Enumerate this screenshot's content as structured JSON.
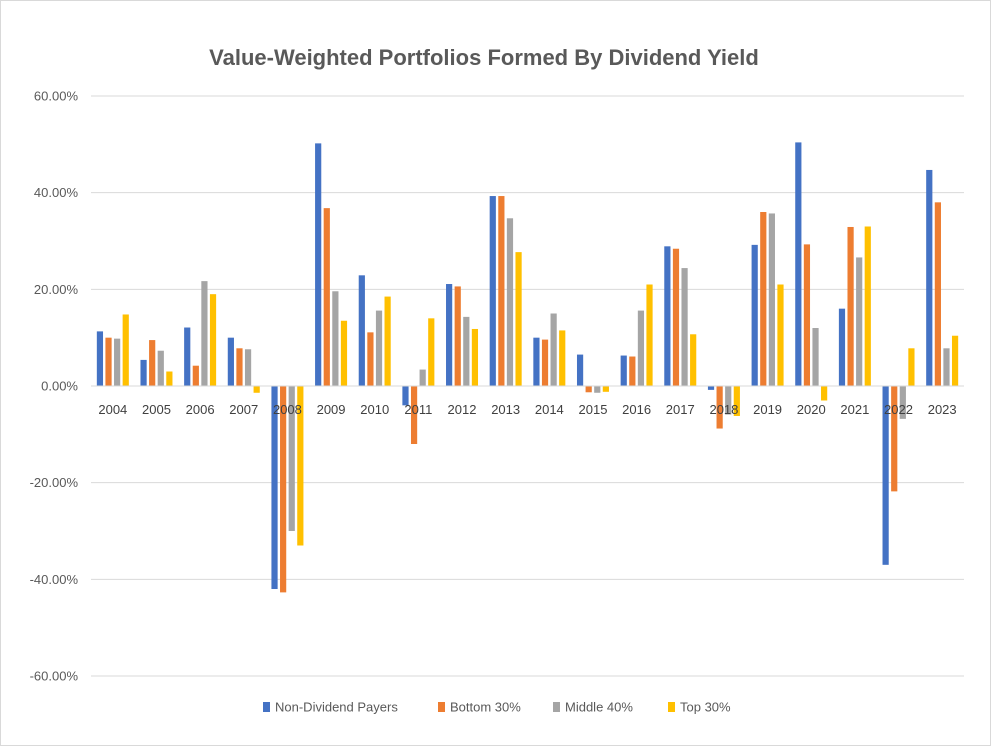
{
  "chart_data": {
    "type": "bar",
    "title": "Value-Weighted Portfolios Formed By Dividend Yield",
    "xlabel": "",
    "ylabel": "",
    "categories": [
      "2004",
      "2005",
      "2006",
      "2007",
      "2008",
      "2009",
      "2010",
      "2011",
      "2012",
      "2013",
      "2014",
      "2015",
      "2016",
      "2017",
      "2018",
      "2019",
      "2020",
      "2021",
      "2022",
      "2023"
    ],
    "y_ticks": [
      {
        "value": 60,
        "label": "60.00%"
      },
      {
        "value": 40,
        "label": "40.00%"
      },
      {
        "value": 20,
        "label": "20.00%"
      },
      {
        "value": 0,
        "label": "0.00%"
      },
      {
        "value": -20,
        "label": "-20.00%"
      },
      {
        "value": -40,
        "label": "-40.00%"
      },
      {
        "value": -60,
        "label": "-60.00%"
      }
    ],
    "ylim": [
      -60,
      60
    ],
    "grid": true,
    "legend_position": "bottom",
    "series": [
      {
        "name": "Non-Dividend Payers",
        "color": "#4472c4",
        "values": [
          11.3,
          5.4,
          12.1,
          10.0,
          -42.0,
          50.2,
          22.9,
          -4.0,
          21.1,
          39.3,
          10.0,
          6.5,
          6.3,
          28.9,
          -0.8,
          29.2,
          50.4,
          16.0,
          -37.0,
          44.7
        ]
      },
      {
        "name": "Bottom 30%",
        "color": "#ed7d31",
        "values": [
          10.0,
          9.5,
          4.2,
          7.8,
          -42.7,
          36.8,
          11.1,
          -12.0,
          20.6,
          39.3,
          9.6,
          -1.3,
          6.1,
          28.4,
          -8.8,
          36.0,
          29.3,
          32.9,
          -21.8,
          38.0
        ]
      },
      {
        "name": "Middle 40%",
        "color": "#a5a5a5",
        "values": [
          9.8,
          7.3,
          21.7,
          7.6,
          -30.0,
          19.6,
          15.6,
          3.4,
          14.3,
          34.7,
          15.0,
          -1.4,
          15.6,
          24.4,
          -5.9,
          35.7,
          12.0,
          26.6,
          -6.8,
          7.8
        ]
      },
      {
        "name": "Top 30%",
        "color": "#ffc000",
        "values": [
          14.8,
          3.0,
          19.0,
          -1.4,
          -33.0,
          13.5,
          18.5,
          14.0,
          11.8,
          27.7,
          11.5,
          -1.2,
          21.0,
          10.7,
          -6.2,
          21.0,
          -3.0,
          33.0,
          7.8,
          10.4
        ]
      }
    ]
  }
}
